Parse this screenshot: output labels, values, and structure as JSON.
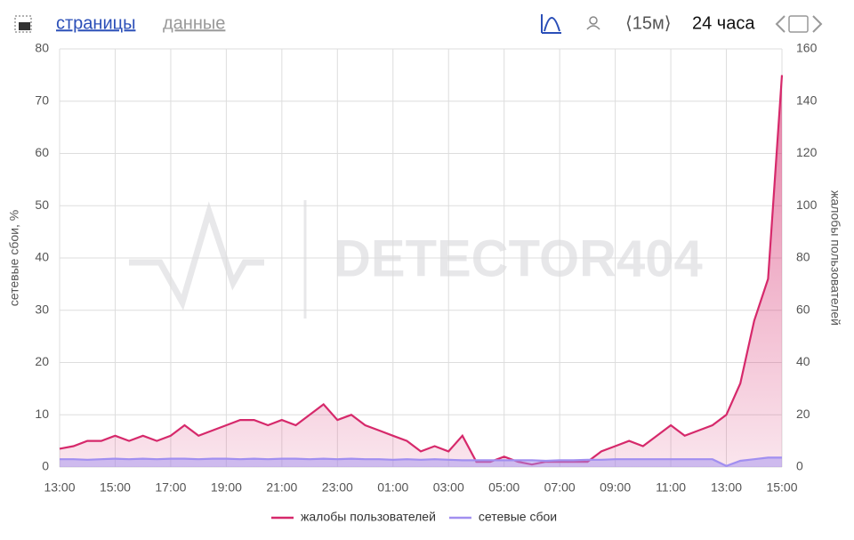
{
  "header": {
    "tabs": [
      "страницы",
      "данные"
    ],
    "interval": "⟨15м⟩",
    "range": "24 часа"
  },
  "chart_data": {
    "type": "line",
    "watermark": "DETECTOR404",
    "categories": [
      "13:00",
      null,
      null,
      null,
      "15:00",
      null,
      null,
      null,
      "17:00",
      null,
      null,
      null,
      "19:00",
      null,
      null,
      null,
      "21:00",
      null,
      null,
      null,
      "23:00",
      null,
      null,
      null,
      "01:00",
      null,
      null,
      null,
      "03:00",
      null,
      null,
      null,
      "05:00",
      null,
      null,
      null,
      "07:00",
      null,
      null,
      null,
      "09:00",
      null,
      null,
      null,
      "11:00",
      null,
      null,
      null,
      "13:00",
      null,
      null,
      null,
      "15:00"
    ],
    "ylabel": "сетевые сбои, %",
    "y2label": "жалобы пользователей",
    "ylim": [
      0,
      80
    ],
    "yticks": [
      0,
      10,
      20,
      30,
      40,
      50,
      60,
      70,
      80
    ],
    "y2lim": [
      0,
      160
    ],
    "y2ticks": [
      0,
      20,
      40,
      60,
      80,
      100,
      120,
      140,
      160
    ],
    "grid": true,
    "legend": "bottom",
    "series": [
      {
        "name": "жалобы пользователей",
        "color": "#d6296b",
        "axis": "y2",
        "fill": true,
        "values": [
          7,
          8,
          10,
          10,
          12,
          10,
          12,
          10,
          12,
          16,
          12,
          14,
          16,
          18,
          18,
          16,
          18,
          16,
          20,
          24,
          18,
          20,
          16,
          14,
          12,
          10,
          6,
          8,
          6,
          12,
          2,
          2,
          4,
          2,
          1,
          2,
          2,
          2,
          2,
          6,
          8,
          10,
          8,
          12,
          16,
          12,
          14,
          16,
          20,
          32,
          56,
          72,
          150
        ]
      },
      {
        "name": "сетевые сбои",
        "color": "#a18ff0",
        "axis": "y",
        "fill": true,
        "values": [
          1.5,
          1.5,
          1.4,
          1.5,
          1.6,
          1.5,
          1.6,
          1.5,
          1.6,
          1.6,
          1.5,
          1.6,
          1.6,
          1.5,
          1.6,
          1.5,
          1.6,
          1.6,
          1.5,
          1.6,
          1.5,
          1.6,
          1.5,
          1.5,
          1.4,
          1.5,
          1.4,
          1.5,
          1.4,
          1.3,
          1.3,
          1.3,
          1.3,
          1.3,
          1.3,
          1.2,
          1.3,
          1.3,
          1.4,
          1.4,
          1.5,
          1.5,
          1.5,
          1.5,
          1.5,
          1.5,
          1.5,
          1.5,
          0.2,
          1.2,
          1.5,
          1.8,
          1.8
        ]
      }
    ]
  }
}
